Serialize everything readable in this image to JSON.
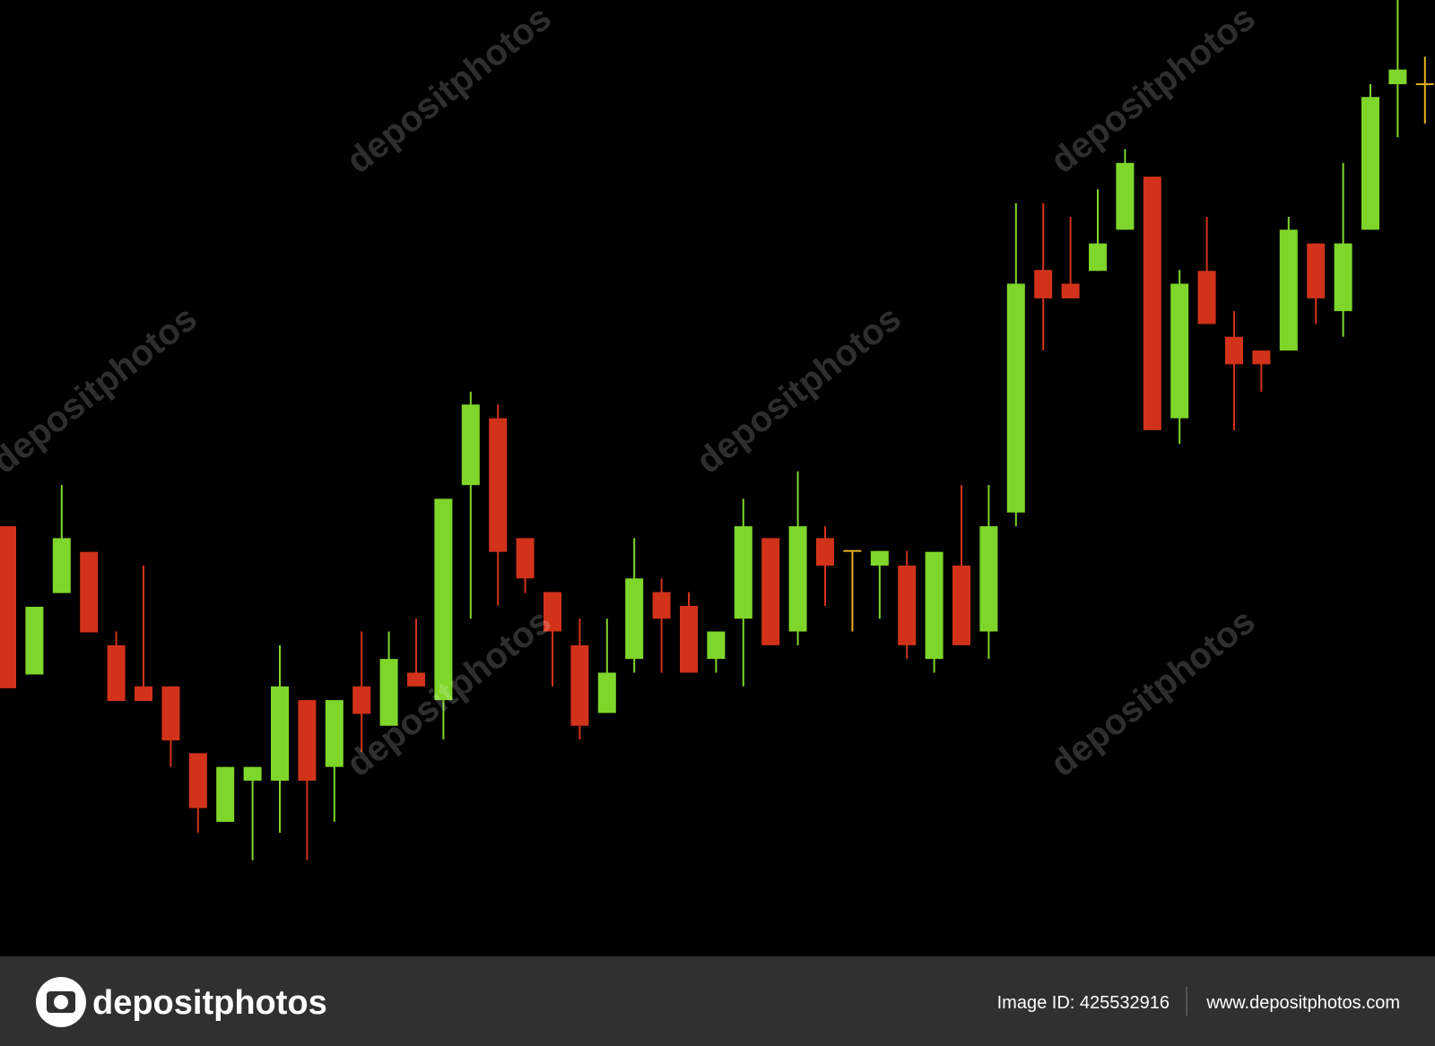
{
  "chart_data": {
    "type": "candlestick",
    "open": [
      470,
      308,
      397,
      442,
      340,
      295,
      295,
      222,
      147,
      192,
      192,
      280,
      207,
      295,
      252,
      310,
      280,
      515,
      588,
      457,
      398,
      340,
      266,
      325,
      398,
      383,
      325,
      369,
      457,
      355,
      457,
      443,
      427,
      427,
      325,
      427,
      355,
      485,
      750,
      735,
      749,
      794,
      852,
      588,
      749,
      677,
      662,
      662,
      779,
      705,
      794,
      953,
      953
    ],
    "high": [
      470,
      382,
      515,
      442,
      355,
      427,
      295,
      222,
      207,
      207,
      340,
      280,
      280,
      355,
      355,
      369,
      500,
      617,
      603,
      457,
      398,
      369,
      369,
      457,
      413,
      398,
      355,
      500,
      457,
      530,
      470,
      443,
      443,
      443,
      442,
      515,
      515,
      823,
      823,
      808,
      838,
      882,
      852,
      750,
      808,
      705,
      662,
      808,
      779,
      867,
      953,
      1045,
      983
    ],
    "low": [
      293,
      308,
      397,
      354,
      279,
      279,
      207,
      135,
      147,
      105,
      135,
      105,
      147,
      223,
      252,
      295,
      237,
      369,
      383,
      397,
      295,
      237,
      266,
      310,
      310,
      310,
      310,
      295,
      340,
      340,
      383,
      355,
      369,
      325,
      310,
      340,
      325,
      470,
      662,
      719,
      749,
      794,
      575,
      560,
      691,
      575,
      617,
      662,
      691,
      677,
      794,
      895,
      910
    ],
    "close": [
      293,
      382,
      457,
      354,
      279,
      279,
      236,
      162,
      207,
      207,
      295,
      192,
      280,
      265,
      325,
      295,
      500,
      603,
      442,
      413,
      355,
      252,
      310,
      413,
      369,
      310,
      355,
      470,
      340,
      470,
      427,
      443,
      443,
      340,
      442,
      340,
      470,
      735,
      719,
      719,
      779,
      867,
      575,
      735,
      691,
      647,
      647,
      794,
      719,
      779,
      939,
      969,
      953
    ],
    "ylim": [
      0,
      1045
    ],
    "up_color": "#7fd62a",
    "down_color": "#d2321a",
    "doji_color": "#e8b020"
  },
  "watermark": "depositphotos",
  "footer": {
    "brand": "depositphotos",
    "image_id": "Image ID: 425532916",
    "url": "www.depositphotos.com"
  }
}
